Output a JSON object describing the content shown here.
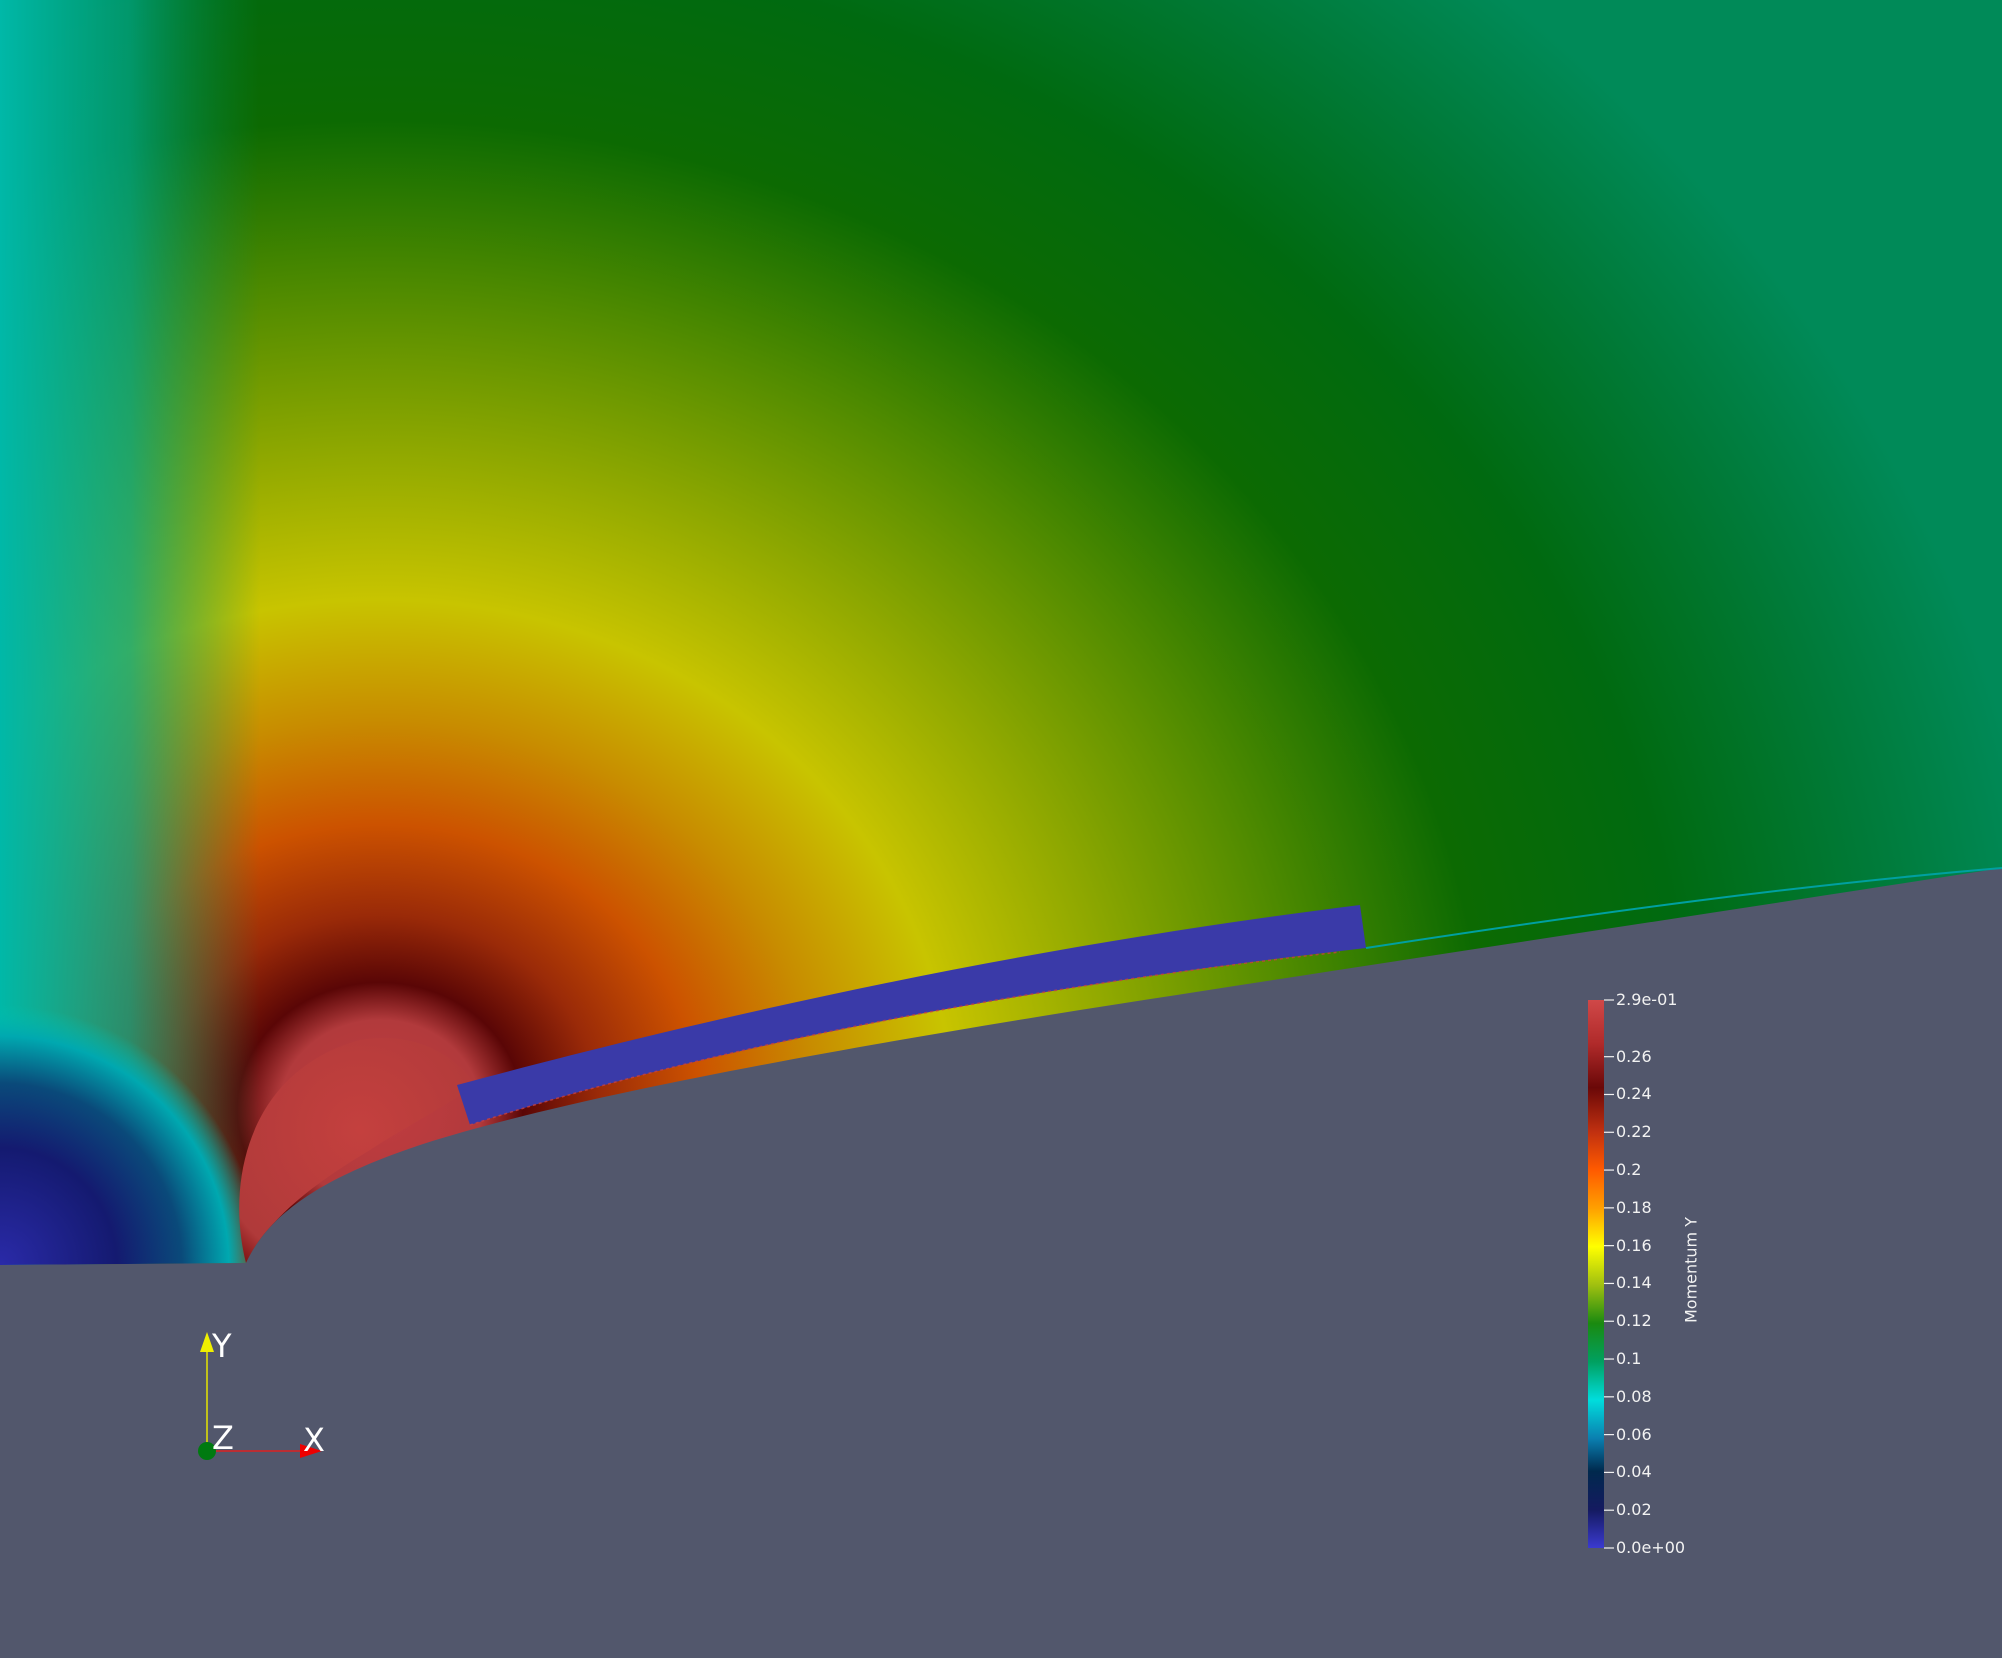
{
  "viewer": {
    "scalar_name": "Momentum Y",
    "background_color": "#52576c"
  },
  "colorbar": {
    "title": "Momentum Y",
    "range": [
      0.0,
      0.29
    ],
    "tick_labels": [
      "2.9e-01",
      "0.26",
      "0.24",
      "0.22",
      "0.2",
      "0.18",
      "0.16",
      "0.14",
      "0.12",
      "0.1",
      "0.08",
      "0.06",
      "0.04",
      "0.02",
      "0.0e+00"
    ],
    "tick_values": [
      0.29,
      0.26,
      0.24,
      0.22,
      0.2,
      0.18,
      0.16,
      0.14,
      0.12,
      0.1,
      0.08,
      0.06,
      0.04,
      0.02,
      0.0
    ],
    "colormap": [
      "#3a3ad0",
      "#141a60",
      "#00294d",
      "#0a7fb0",
      "#00dddd",
      "#00a060",
      "#1a8a10",
      "#a0c010",
      "#ffff00",
      "#ffa000",
      "#ff5a00",
      "#b02010",
      "#6a0808",
      "#c03a40",
      "#d04848"
    ]
  },
  "orientation_axes": {
    "x_label": "X",
    "y_label": "Y",
    "z_label": "Z",
    "x_color": "#ff0000",
    "y_color": "#ffff00",
    "z_color": "#00a000"
  }
}
